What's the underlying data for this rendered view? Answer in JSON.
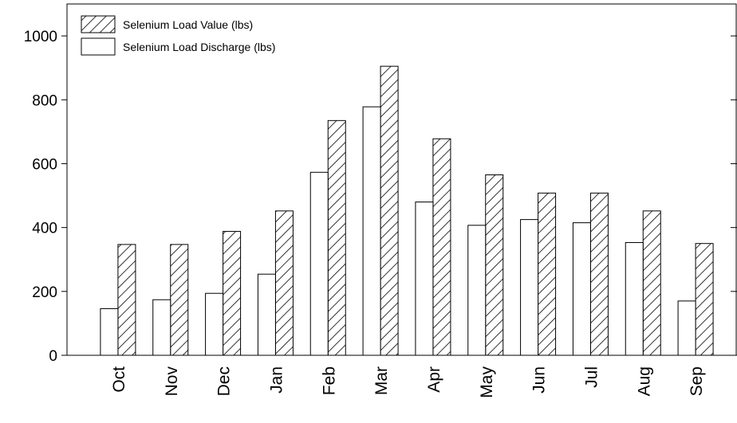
{
  "chart_data": {
    "type": "bar",
    "categories": [
      "Oct",
      "Nov",
      "Dec",
      "Jan",
      "Feb",
      "Mar",
      "Apr",
      "May",
      "Jun",
      "Jul",
      "Aug",
      "Sep"
    ],
    "series": [
      {
        "name": "Selenium Load Value (lbs)",
        "color": "#ffffff",
        "hatch": true,
        "values": [
          347,
          347,
          388,
          452,
          735,
          905,
          678,
          565,
          508,
          508,
          452,
          350
        ]
      },
      {
        "name": "Selenium Load Discharge (lbs)",
        "color": "#ffffff",
        "hatch": false,
        "values": [
          146,
          174,
          194,
          254,
          573,
          778,
          480,
          407,
          425,
          415,
          353,
          170
        ]
      }
    ],
    "ylim": [
      0,
      1100
    ],
    "yticks": [
      0,
      200,
      400,
      600,
      800,
      1000
    ],
    "grid": false,
    "legend": "top-left"
  }
}
